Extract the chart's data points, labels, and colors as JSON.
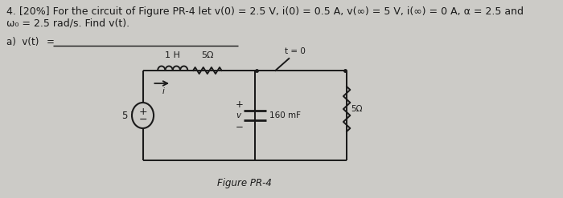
{
  "background_color": "#cccbc7",
  "title_text": "4. [20%] For the circuit of Figure PR-4 let v(0) = 2.5 V, i(0) = 0.5 A, v(∞) = 5 V, i(∞) = 0 A, α = 2.5 and",
  "title_line2": "ω₀ = 2.5 rad/s. Find v(t).",
  "part_a_label": "a)  v(t)",
  "part_a_eq": "=",
  "figure_label": "Figure PR-4",
  "circuit": {
    "inductor_label": "1 H",
    "resistor_top_label": "5Ω",
    "switch_label": "t = 0",
    "source_label": "5 V",
    "capacitor_label": "160 mF",
    "resistor_right_label": "5Ω",
    "current_label": "i",
    "vplus": "+",
    "vminus": "−",
    "v_label": "v"
  },
  "lc": "#1a1a1a",
  "tc": "#1a1a1a",
  "fs_title": 9.0,
  "fs_body": 8.5,
  "fs_circ": 7.5
}
